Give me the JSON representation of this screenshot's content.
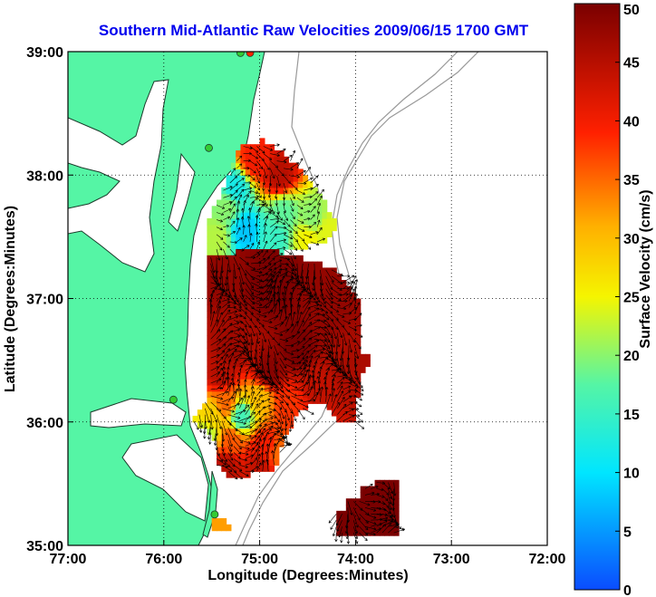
{
  "chart_data": {
    "type": "heatmap",
    "title": "Southern Mid-Atlantic Raw Velocities 2009/06/15 1700 GMT",
    "xlabel": "Longitude (Degrees:Minutes)",
    "ylabel": "Latitude (Degrees:Minutes)",
    "colorbar_label": "Surface Velocity (cm/s)",
    "xlim": [
      -77,
      -72
    ],
    "ylim": [
      35,
      39
    ],
    "x_ticks": [
      {
        "value": -77,
        "label": "77:00"
      },
      {
        "value": -76,
        "label": "76:00"
      },
      {
        "value": -75,
        "label": "75:00"
      },
      {
        "value": -74,
        "label": "74:00"
      },
      {
        "value": -73,
        "label": "73:00"
      },
      {
        "value": -72,
        "label": "72:00"
      }
    ],
    "y_ticks": [
      {
        "value": 35,
        "label": "35:00"
      },
      {
        "value": 36,
        "label": "36:00"
      },
      {
        "value": 37,
        "label": "37:00"
      },
      {
        "value": 38,
        "label": "38:00"
      },
      {
        "value": 39,
        "label": "39:00"
      }
    ],
    "colorbar": {
      "range": [
        0,
        50
      ],
      "ticks": [
        {
          "value": 0,
          "label": "0"
        },
        {
          "value": 5,
          "label": "5"
        },
        {
          "value": 10,
          "label": "10"
        },
        {
          "value": 15,
          "label": "15"
        },
        {
          "value": 20,
          "label": "20"
        },
        {
          "value": 25,
          "label": "25"
        },
        {
          "value": 30,
          "label": "30"
        },
        {
          "value": 35,
          "label": "35"
        },
        {
          "value": 40,
          "label": "40"
        },
        {
          "value": 45,
          "label": "45"
        },
        {
          "value": 50,
          "label": "50"
        }
      ]
    },
    "grid": "dotted",
    "colors": {
      "land": "#55f5a5",
      "ocean": "#ffffff",
      "title": "#0000ee",
      "station": "#33cc33",
      "station_alt": "#ff2200",
      "isobath": "#999999",
      "vector": "#000000"
    },
    "stations": [
      {
        "lon": -75.1,
        "lat": 38.99,
        "color": "#ff2200"
      },
      {
        "lon": -75.2,
        "lat": 38.99,
        "color": "#33cc33"
      },
      {
        "lon": -75.53,
        "lat": 38.22,
        "color": "#33cc33"
      },
      {
        "lon": -75.9,
        "lat": 36.18,
        "color": "#33cc33"
      },
      {
        "lon": -75.47,
        "lat": 35.25,
        "color": "#33cc33"
      }
    ],
    "velocity_regions": [
      {
        "name": "northern-patch",
        "points": [
          [
            -75.2,
            38.25
          ],
          [
            -74.95,
            38.28
          ],
          [
            -74.55,
            38.05
          ],
          [
            -74.3,
            37.75
          ],
          [
            -74.2,
            37.6
          ],
          [
            -74.35,
            37.45
          ],
          [
            -74.9,
            37.35
          ],
          [
            -75.55,
            37.35
          ],
          [
            -75.55,
            37.6
          ],
          [
            -75.35,
            37.95
          ]
        ],
        "samples": [
          [
            -75.05,
            38.12,
            40
          ],
          [
            -74.8,
            38.0,
            45
          ],
          [
            -75.25,
            37.9,
            12
          ],
          [
            -74.75,
            37.7,
            18
          ],
          [
            -74.45,
            37.65,
            20
          ],
          [
            -75.15,
            37.55,
            8
          ],
          [
            -74.85,
            37.5,
            15
          ],
          [
            -74.5,
            37.5,
            25
          ],
          [
            -75.45,
            37.5,
            22
          ],
          [
            -74.3,
            37.55,
            24
          ],
          [
            -75.35,
            37.75,
            20
          ]
        ]
      },
      {
        "name": "main-patch",
        "points": [
          [
            -75.55,
            37.35
          ],
          [
            -74.9,
            37.4
          ],
          [
            -74.25,
            37.25
          ],
          [
            -73.95,
            37.0
          ],
          [
            -73.95,
            36.55
          ],
          [
            -73.85,
            36.55
          ],
          [
            -73.85,
            36.45
          ],
          [
            -73.95,
            36.4
          ],
          [
            -74.0,
            36.0
          ],
          [
            -74.2,
            36.0
          ],
          [
            -74.35,
            36.15
          ],
          [
            -74.6,
            36.1
          ],
          [
            -74.75,
            35.85
          ],
          [
            -74.85,
            35.6
          ],
          [
            -75.3,
            35.55
          ],
          [
            -75.45,
            35.65
          ],
          [
            -75.45,
            35.85
          ],
          [
            -75.7,
            36.0
          ],
          [
            -75.55,
            36.2
          ],
          [
            -75.55,
            36.8
          ]
        ],
        "samples": [
          [
            -75.4,
            37.2,
            48
          ],
          [
            -74.9,
            37.1,
            50
          ],
          [
            -74.3,
            36.9,
            48
          ],
          [
            -74.6,
            36.6,
            50
          ],
          [
            -75.3,
            36.6,
            47
          ],
          [
            -74.1,
            36.5,
            46
          ],
          [
            -74.9,
            36.4,
            49
          ],
          [
            -75.4,
            36.4,
            45
          ],
          [
            -74.4,
            36.3,
            44
          ],
          [
            -75.0,
            36.2,
            30
          ],
          [
            -75.35,
            36.15,
            35
          ],
          [
            -74.7,
            36.15,
            38
          ],
          [
            -75.5,
            36.05,
            28
          ],
          [
            -75.2,
            36.05,
            16
          ],
          [
            -75.55,
            35.9,
            22
          ],
          [
            -75.3,
            35.85,
            36
          ],
          [
            -74.95,
            35.8,
            40
          ],
          [
            -75.35,
            35.65,
            45
          ],
          [
            -75.0,
            35.65,
            44
          ],
          [
            -74.8,
            35.75,
            35
          ]
        ]
      },
      {
        "name": "southern-block",
        "points": [
          [
            -74.2,
            35.08
          ],
          [
            -73.55,
            35.08
          ],
          [
            -73.55,
            35.55
          ],
          [
            -73.8,
            35.55
          ],
          [
            -73.8,
            35.48
          ],
          [
            -73.95,
            35.48
          ],
          [
            -73.95,
            35.38
          ],
          [
            -74.1,
            35.38
          ],
          [
            -74.1,
            35.28
          ],
          [
            -74.2,
            35.28
          ]
        ],
        "samples": [
          [
            -73.9,
            35.3,
            50
          ],
          [
            -73.7,
            35.2,
            50
          ],
          [
            -74.1,
            35.15,
            50
          ],
          [
            -73.65,
            35.45,
            50
          ]
        ]
      },
      {
        "name": "small-coastal-patch",
        "points": [
          [
            -75.5,
            35.12
          ],
          [
            -75.3,
            35.12
          ],
          [
            -75.35,
            35.2
          ],
          [
            -75.5,
            35.2
          ]
        ],
        "samples": [
          [
            -75.4,
            35.16,
            32
          ]
        ]
      }
    ],
    "vector_fields": [
      {
        "region": "northern-patch",
        "lon": [
          -75.45,
          -74.35
        ],
        "lat": [
          37.4,
          38.3
        ],
        "step": 0.07,
        "scale": 0.1
      },
      {
        "region": "main-patch",
        "lon": [
          -75.75,
          -73.95
        ],
        "lat": [
          35.6,
          37.35
        ],
        "step": 0.06,
        "scale": 0.13
      },
      {
        "region": "southern-block",
        "lon": [
          -74.2,
          -73.25
        ],
        "lat": [
          35.0,
          35.6
        ],
        "step": 0.06,
        "scale": 0.12
      }
    ]
  }
}
